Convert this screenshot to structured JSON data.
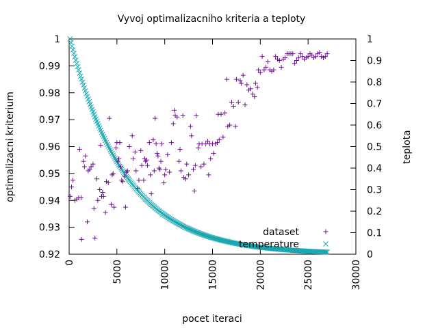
{
  "chart_data": {
    "type": "scatter",
    "title": "Vyvoj optimalizacniho kriteria a teploty",
    "xlabel": "pocet iteraci",
    "ylabel": "optimalizacni kriterium",
    "y2label": "teplota",
    "xlim": [
      0,
      30000
    ],
    "ylim": [
      0.92,
      1.0
    ],
    "y2lim": [
      0,
      1
    ],
    "xticks": [
      "0",
      "5000",
      "10000",
      "15000",
      "20000",
      "25000",
      "30000"
    ],
    "yticks": [
      "0.92",
      "0.93",
      "0.94",
      "0.95",
      "0.96",
      "0.97",
      "0.98",
      "0.99",
      "1"
    ],
    "y2ticks": [
      "0",
      "0.1",
      "0.2",
      "0.3",
      "0.4",
      "0.5",
      "0.6",
      "0.7",
      "0.8",
      "0.9",
      "1"
    ],
    "grid": false,
    "legend_position": "bottom-right",
    "series": [
      {
        "name": "dataset",
        "axis": "y",
        "marker": "plus",
        "color": "#6a0f8e",
        "points": [
          [
            100,
            0.9415
          ],
          [
            250,
            0.945
          ],
          [
            400,
            0.9475
          ],
          [
            600,
            0.94
          ],
          [
            800,
            0.9405
          ],
          [
            1000,
            0.941
          ],
          [
            1100,
            0.959
          ],
          [
            1250,
            0.941
          ],
          [
            1300,
            0.9255
          ],
          [
            1500,
            0.9545
          ],
          [
            1600,
            0.9525
          ],
          [
            1700,
            0.9565
          ],
          [
            1900,
            0.932
          ],
          [
            2000,
            0.951
          ],
          [
            2150,
            0.9515
          ],
          [
            2300,
            0.9525
          ],
          [
            2500,
            0.9535
          ],
          [
            2600,
            0.937
          ],
          [
            2700,
            0.926
          ],
          [
            2900,
            0.948
          ],
          [
            3000,
            0.94
          ],
          [
            3200,
            0.944
          ],
          [
            3300,
            0.9605
          ],
          [
            3400,
            0.9415
          ],
          [
            3500,
            0.943
          ],
          [
            3600,
            0.9415
          ],
          [
            3800,
            0.9355
          ],
          [
            3900,
            0.947
          ],
          [
            4100,
            0.9465
          ],
          [
            4200,
            0.9705
          ],
          [
            4400,
            0.9385
          ],
          [
            4500,
            0.9495
          ],
          [
            4600,
            0.95
          ],
          [
            4700,
            0.9375
          ],
          [
            4900,
            0.9595
          ],
          [
            5000,
            0.9615
          ],
          [
            5100,
            0.9545
          ],
          [
            5200,
            0.9555
          ],
          [
            5300,
            0.9615
          ],
          [
            5400,
            0.9525
          ],
          [
            5500,
            0.9475
          ],
          [
            5600,
            0.947
          ],
          [
            5800,
            0.949
          ],
          [
            5900,
            0.9375
          ],
          [
            6000,
            0.9505
          ],
          [
            6100,
            0.951
          ],
          [
            6300,
            0.96
          ],
          [
            6600,
            0.964
          ],
          [
            6700,
            0.9555
          ],
          [
            6900,
            0.958
          ],
          [
            7000,
            0.951
          ],
          [
            7200,
            0.9445
          ],
          [
            7300,
            0.9475
          ],
          [
            7500,
            0.9585
          ],
          [
            7600,
            0.953
          ],
          [
            7800,
            0.9475
          ],
          [
            7900,
            0.9555
          ],
          [
            8000,
            0.9545
          ],
          [
            8100,
            0.955
          ],
          [
            8200,
            0.953
          ],
          [
            8400,
            0.9615
          ],
          [
            8500,
            0.9495
          ],
          [
            8600,
            0.9425
          ],
          [
            8800,
            0.9625
          ],
          [
            8900,
            0.951
          ],
          [
            9000,
            0.9705
          ],
          [
            9100,
            0.961
          ],
          [
            9200,
            0.9575
          ],
          [
            9300,
            0.9565
          ],
          [
            9400,
            0.952
          ],
          [
            9500,
            0.9515
          ],
          [
            9600,
            0.9545
          ],
          [
            9700,
            0.961
          ],
          [
            9900,
            0.9465
          ],
          [
            10000,
            0.9495
          ],
          [
            10100,
            0.9515
          ],
          [
            10300,
            0.957
          ],
          [
            10500,
            0.9505
          ],
          [
            10700,
            0.9615
          ],
          [
            10900,
            0.9685
          ],
          [
            11000,
            0.9735
          ],
          [
            11100,
            0.9715
          ],
          [
            11300,
            0.971
          ],
          [
            11500,
            0.9545
          ],
          [
            11600,
            0.959
          ],
          [
            11700,
            0.951
          ],
          [
            11900,
            0.9715
          ],
          [
            12000,
            0.9485
          ],
          [
            12200,
            0.948
          ],
          [
            12300,
            0.9535
          ],
          [
            12500,
            0.9495
          ],
          [
            12700,
            0.9675
          ],
          [
            12800,
            0.964
          ],
          [
            13000,
            0.9515
          ],
          [
            13100,
            0.9435
          ],
          [
            13200,
            0.953
          ],
          [
            13300,
            0.9715
          ],
          [
            13500,
            0.9595
          ],
          [
            13600,
            0.961
          ],
          [
            13800,
            0.9525
          ],
          [
            13900,
            0.961
          ],
          [
            14100,
            0.9535
          ],
          [
            14300,
            0.961
          ],
          [
            14500,
            0.962
          ],
          [
            14600,
            0.9495
          ],
          [
            14700,
            0.961
          ],
          [
            14800,
            0.9555
          ],
          [
            15000,
            0.961
          ],
          [
            15100,
            0.9575
          ],
          [
            15300,
            0.961
          ],
          [
            15500,
            0.9615
          ],
          [
            15600,
            0.972
          ],
          [
            15700,
            0.9625
          ],
          [
            15900,
            0.972
          ],
          [
            16100,
            0.9635
          ],
          [
            16300,
            0.9725
          ],
          [
            16500,
            0.985
          ],
          [
            16600,
            0.9675
          ],
          [
            16800,
            0.968
          ],
          [
            17000,
            0.9765
          ],
          [
            17200,
            0.975
          ],
          [
            17400,
            0.9675
          ],
          [
            17500,
            0.985
          ],
          [
            17700,
            0.9765
          ],
          [
            17900,
            0.9845
          ],
          [
            18000,
            0.9835
          ],
          [
            18200,
            0.9865
          ],
          [
            18400,
            0.9755
          ],
          [
            18600,
            0.983
          ],
          [
            18800,
            0.981
          ],
          [
            19000,
            0.9815
          ],
          [
            19200,
            0.9795
          ],
          [
            19400,
            0.9785
          ],
          [
            19500,
            0.9835
          ],
          [
            19700,
            0.982
          ],
          [
            19800,
            0.9885
          ],
          [
            20000,
            0.9875
          ],
          [
            20200,
            0.9935
          ],
          [
            20400,
            0.9885
          ],
          [
            20600,
            0.9895
          ],
          [
            20800,
            0.9915
          ],
          [
            21000,
            0.9885
          ],
          [
            21200,
            0.988
          ],
          [
            21400,
            0.9885
          ],
          [
            21600,
            0.9935
          ],
          [
            21800,
            0.9925
          ],
          [
            22000,
            0.992
          ],
          [
            22200,
            0.9895
          ],
          [
            22400,
            0.9925
          ],
          [
            22600,
            0.993
          ],
          [
            22800,
            0.9945
          ],
          [
            23000,
            0.9945
          ],
          [
            23200,
            0.9945
          ],
          [
            23400,
            0.9945
          ],
          [
            23600,
            0.991
          ],
          [
            23800,
            0.992
          ],
          [
            24000,
            0.993
          ],
          [
            24200,
            0.9945
          ],
          [
            24400,
            0.9935
          ],
          [
            24600,
            0.9925
          ],
          [
            24800,
            0.993
          ],
          [
            25000,
            0.9935
          ],
          [
            25200,
            0.9945
          ],
          [
            25400,
            0.994
          ],
          [
            25600,
            0.993
          ],
          [
            25800,
            0.9935
          ],
          [
            26000,
            0.9945
          ],
          [
            26200,
            0.995
          ],
          [
            26400,
            0.9935
          ],
          [
            26600,
            0.993
          ],
          [
            26800,
            0.9935
          ],
          [
            27000,
            0.9945
          ]
        ]
      },
      {
        "name": "temperature",
        "axis": "y2",
        "marker": "cross",
        "color": "#1aa7b0",
        "x_start": 100,
        "x_step": 100,
        "x_end": 27000,
        "decay": 0.9829
      }
    ]
  }
}
